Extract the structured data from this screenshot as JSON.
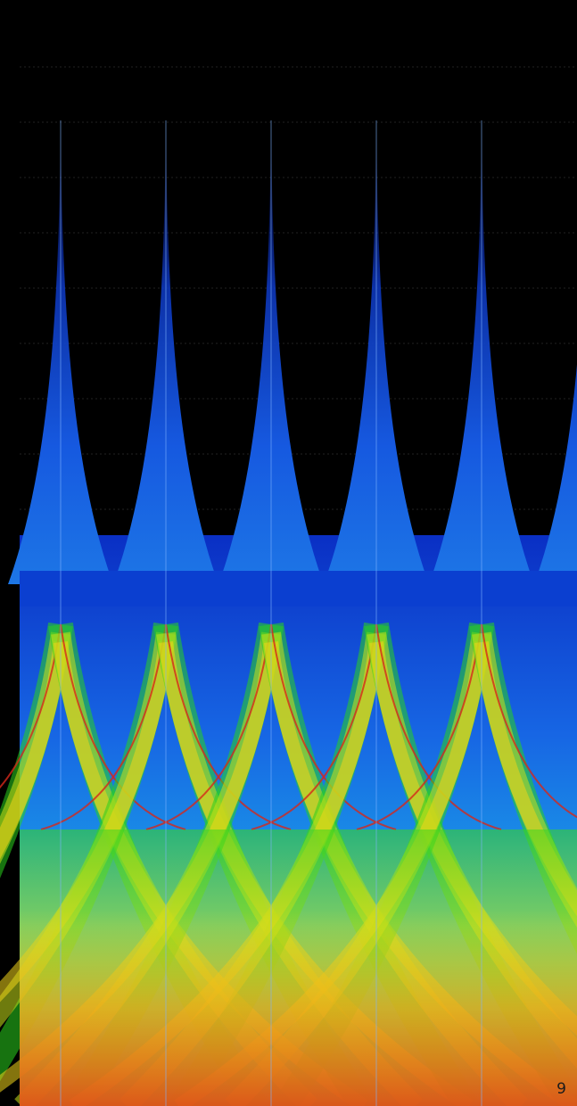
{
  "overlay": {
    "page_number": "9"
  },
  "colors": {
    "background": "#000000",
    "blue": "#1d4fd8",
    "cyan": "#1fc9d6",
    "green": "#1ad21a",
    "yellow": "#f0e21a",
    "orange": "#f08a14",
    "red": "#d42a12"
  }
}
